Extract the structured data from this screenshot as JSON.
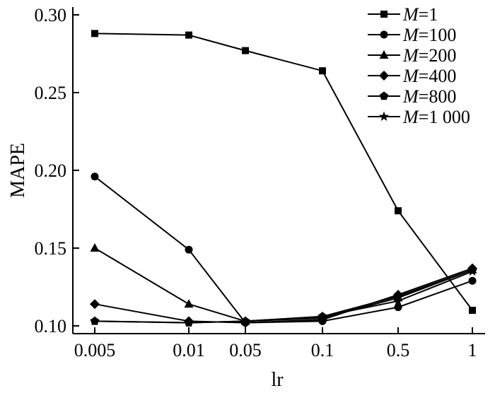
{
  "chart_data": {
    "type": "line",
    "categories": [
      "0.005",
      "0.01",
      "0.05",
      "0.1",
      "0.5",
      "1"
    ],
    "series": [
      {
        "name_var": "M",
        "name_value": "=1",
        "marker": "square",
        "values": [
          0.288,
          0.287,
          0.277,
          0.264,
          0.174,
          0.11
        ]
      },
      {
        "name_var": "M",
        "name_value": "=100",
        "marker": "circle",
        "values": [
          0.196,
          0.149,
          0.102,
          0.103,
          0.112,
          0.129
        ]
      },
      {
        "name_var": "M",
        "name_value": "=200",
        "marker": "triangle",
        "values": [
          0.15,
          0.114,
          0.103,
          0.105,
          0.118,
          0.136
        ]
      },
      {
        "name_var": "M",
        "name_value": "=400",
        "marker": "diamond",
        "values": [
          0.114,
          0.103,
          0.102,
          0.104,
          0.12,
          0.137
        ]
      },
      {
        "name_var": "M",
        "name_value": "=800",
        "marker": "pentagon",
        "values": [
          0.103,
          0.102,
          0.103,
          0.106,
          0.119,
          0.136
        ]
      },
      {
        "name_var": "M",
        "name_value": "=1 000",
        "marker": "star",
        "values": [
          0.103,
          0.102,
          0.103,
          0.106,
          0.116,
          0.135
        ]
      }
    ],
    "xlabel": "lr",
    "ylabel": "MAPE",
    "ylim": [
      0.095,
      0.305
    ],
    "yticks": [
      "0.10",
      "0.15",
      "0.20",
      "0.25",
      "0.30"
    ],
    "legend_position": "top-right",
    "grid": false,
    "line_color": "#000000"
  }
}
